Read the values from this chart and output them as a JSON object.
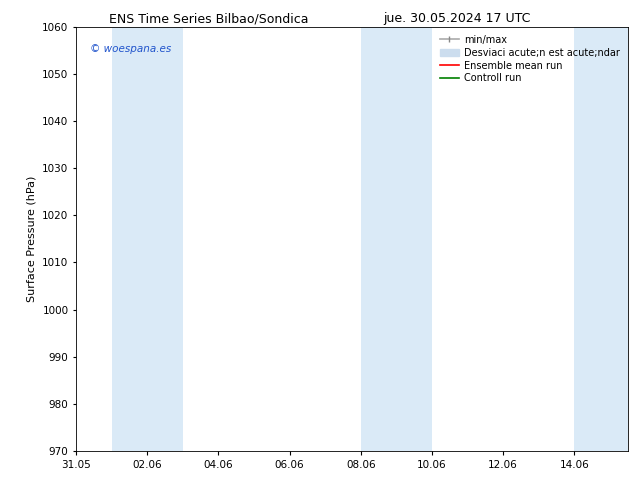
{
  "title_left": "ENS Time Series Bilbao/Sondica",
  "title_right": "jue. 30.05.2024 17 UTC",
  "ylabel": "Surface Pressure (hPa)",
  "ylim": [
    970,
    1060
  ],
  "yticks": [
    970,
    980,
    990,
    1000,
    1010,
    1020,
    1030,
    1040,
    1050,
    1060
  ],
  "xtick_labels": [
    "31.05",
    "02.06",
    "04.06",
    "06.06",
    "08.06",
    "10.06",
    "12.06",
    "14.06"
  ],
  "xtick_positions": [
    0,
    2,
    4,
    6,
    8,
    10,
    12,
    14
  ],
  "xlim": [
    0,
    15.5
  ],
  "shaded_bands": [
    {
      "x_start": 1,
      "x_end": 3
    },
    {
      "x_start": 8,
      "x_end": 10
    },
    {
      "x_start": 14,
      "x_end": 15.5
    }
  ],
  "band_color": "#daeaf7",
  "watermark_text": "© woespana.es",
  "watermark_color": "#2255cc",
  "bg_color": "#ffffff",
  "axes_bg_color": "#ffffff",
  "title_fontsize": 9,
  "label_fontsize": 8,
  "tick_fontsize": 7.5,
  "legend_fontsize": 7,
  "legend_label_minmax": "min/max",
  "legend_label_std": "Desviaci acute;n est acute;ndar",
  "legend_label_ensemble": "Ensemble mean run",
  "legend_label_control": "Controll run"
}
